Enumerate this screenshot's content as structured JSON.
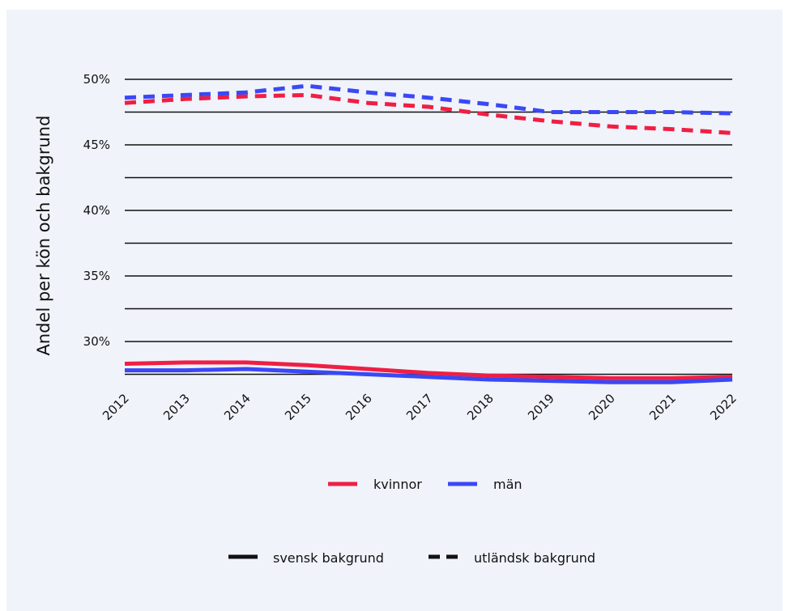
{
  "chart_data": {
    "type": "line",
    "title": "",
    "xlabel": "",
    "ylabel": "Andel per kön och bakgrund",
    "x": [
      "2012",
      "2013",
      "2014",
      "2015",
      "2016",
      "2017",
      "2018",
      "2019",
      "2020",
      "2021",
      "2022"
    ],
    "ylim": [
      27.2,
      50.5
    ],
    "y_ticks": [
      {
        "value": 50,
        "label": "50%"
      },
      {
        "value": 45,
        "label": "45%"
      },
      {
        "value": 40,
        "label": "40%"
      },
      {
        "value": 35,
        "label": "35%"
      },
      {
        "value": 30,
        "label": "30%"
      }
    ],
    "gridlines": [
      50,
      47.5,
      45,
      42.5,
      40,
      37.5,
      35,
      32.5,
      30,
      27.5
    ],
    "grid": true,
    "series": [
      {
        "name": "kvinnor",
        "background": "utländsk bakgrund",
        "style": "dashed",
        "color": "#ef1f44",
        "values": [
          48.2,
          48.5,
          48.7,
          48.8,
          48.2,
          47.9,
          47.3,
          46.8,
          46.4,
          46.2,
          45.9
        ]
      },
      {
        "name": "män",
        "background": "utländsk bakgrund",
        "style": "dashed",
        "color": "#3a48f5",
        "values": [
          48.6,
          48.8,
          49.0,
          49.5,
          49.0,
          48.6,
          48.1,
          47.5,
          47.5,
          47.5,
          47.4
        ]
      },
      {
        "name": "kvinnor",
        "background": "svensk bakgrund",
        "style": "solid",
        "color": "#ef1f44",
        "values": [
          28.3,
          28.4,
          28.4,
          28.2,
          27.9,
          27.6,
          27.4,
          27.3,
          27.2,
          27.2,
          27.3
        ]
      },
      {
        "name": "män",
        "background": "svensk bakgrund",
        "style": "solid",
        "color": "#3a48f5",
        "values": [
          27.8,
          27.8,
          27.9,
          27.7,
          27.5,
          27.3,
          27.1,
          27.0,
          26.9,
          26.9,
          27.1
        ]
      }
    ],
    "legend": {
      "placement": "bottom",
      "colors": [
        {
          "label": "kvinnor",
          "color": "#ef1f44"
        },
        {
          "label": "män",
          "color": "#3a48f5"
        }
      ],
      "styles": [
        {
          "label": "svensk bakgrund",
          "style": "solid"
        },
        {
          "label": "utländsk bakgrund",
          "style": "dashed"
        }
      ]
    }
  }
}
